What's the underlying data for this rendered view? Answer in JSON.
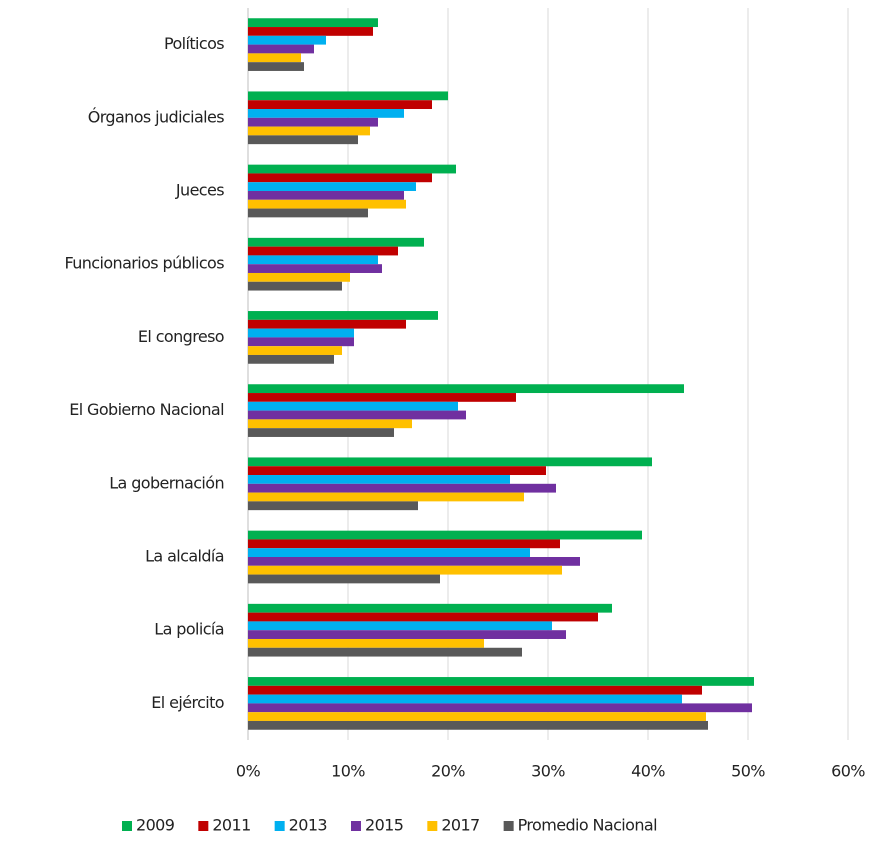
{
  "chart_data": {
    "type": "hbar",
    "categories": [
      "Políticos",
      "Órganos judiciales",
      "Jueces",
      "Funcionarios públicos",
      "El congreso",
      "El Gobierno Nacional",
      "La gobernación",
      "La alcaldía",
      "La policía",
      "El ejército"
    ],
    "series": [
      {
        "name": "2009",
        "color": "#00b050",
        "values": [
          13.0,
          20.0,
          20.8,
          17.6,
          19.0,
          43.6,
          40.4,
          39.4,
          36.4,
          50.6
        ]
      },
      {
        "name": "2011",
        "color": "#c00000",
        "values": [
          12.5,
          18.4,
          18.4,
          15.0,
          15.8,
          26.8,
          29.8,
          31.2,
          35.0,
          45.4
        ]
      },
      {
        "name": "2013",
        "color": "#00b0f0",
        "values": [
          7.8,
          15.6,
          16.8,
          13.0,
          10.6,
          21.0,
          26.2,
          28.2,
          30.4,
          43.4
        ]
      },
      {
        "name": "2015",
        "color": "#7030a0",
        "values": [
          6.6,
          13.0,
          15.6,
          13.4,
          10.6,
          21.8,
          30.8,
          33.2,
          31.8,
          50.4
        ]
      },
      {
        "name": "2017",
        "color": "#ffc000",
        "values": [
          5.3,
          12.2,
          15.8,
          10.2,
          9.4,
          16.4,
          27.6,
          31.4,
          23.6,
          45.8
        ]
      },
      {
        "name": "Promedio Nacional",
        "color": "#595959",
        "values": [
          5.6,
          11.0,
          12.0,
          9.4,
          8.6,
          14.6,
          17.0,
          19.2,
          27.4,
          46.0
        ]
      }
    ],
    "xlim": [
      0,
      60
    ],
    "xticks": [
      {
        "value": 0,
        "label": "0%"
      },
      {
        "value": 10,
        "label": "10%"
      },
      {
        "value": 20,
        "label": "20%"
      },
      {
        "value": 30,
        "label": "30%"
      },
      {
        "value": 40,
        "label": "40%"
      },
      {
        "value": 50,
        "label": "50%"
      },
      {
        "value": 60,
        "label": "60%"
      }
    ],
    "grid": true,
    "legend": "bottom"
  }
}
